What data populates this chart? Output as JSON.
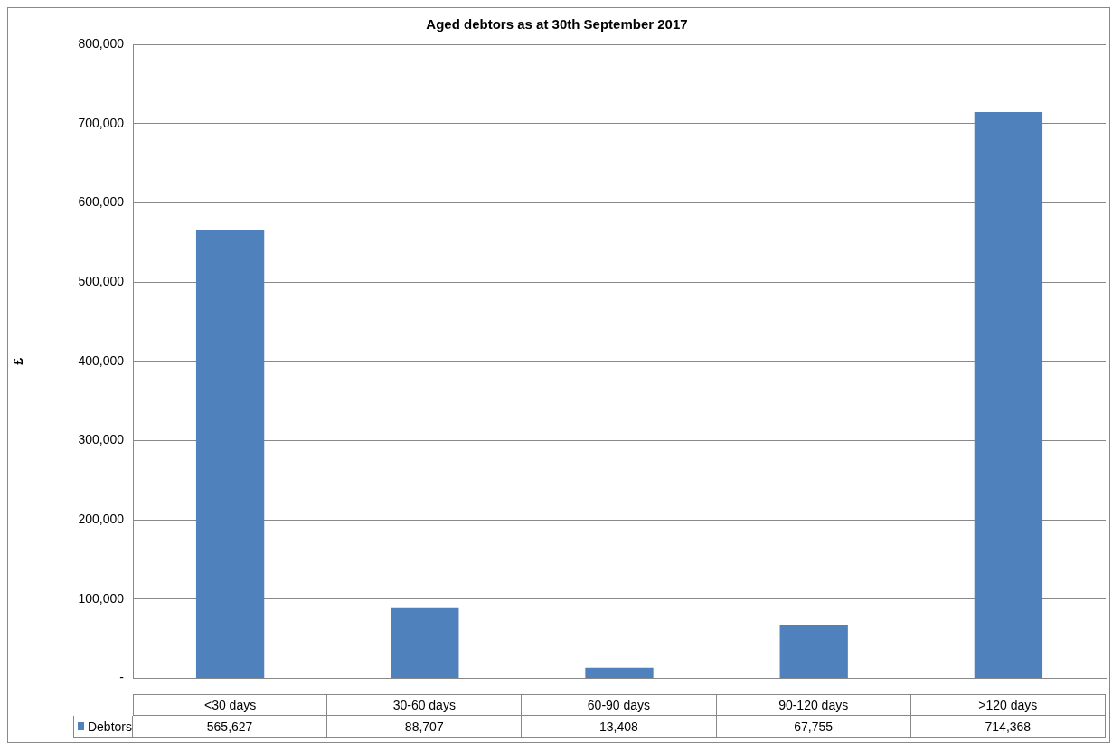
{
  "chart_data": {
    "type": "bar",
    "title": "Aged debtors as at 30th September 2017",
    "ylabel": "£",
    "categories": [
      "<30 days",
      "30-60 days",
      "60-90 days",
      "90-120 days",
      ">120 days"
    ],
    "series": [
      {
        "name": "Debtors",
        "color": "#4f81bd",
        "values": [
          565627,
          88707,
          13408,
          67755,
          714368
        ],
        "value_labels": [
          "565,627",
          "88,707",
          "13,408",
          "67,755",
          "714,368"
        ]
      }
    ],
    "ylim": [
      0,
      800000
    ],
    "yticks": [
      {
        "value": 0,
        "label": "-"
      },
      {
        "value": 100000,
        "label": "100,000"
      },
      {
        "value": 200000,
        "label": "200,000"
      },
      {
        "value": 300000,
        "label": "300,000"
      },
      {
        "value": 400000,
        "label": "400,000"
      },
      {
        "value": 500000,
        "label": "500,000"
      },
      {
        "value": 600000,
        "label": "600,000"
      },
      {
        "value": 700000,
        "label": "700,000"
      },
      {
        "value": 800000,
        "label": "800,000"
      }
    ],
    "grid": "y",
    "legend": "bottom"
  }
}
